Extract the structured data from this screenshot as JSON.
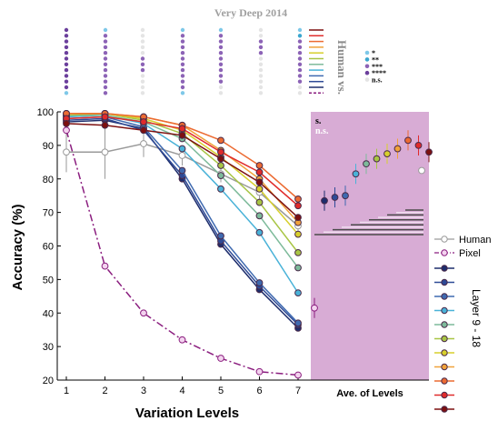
{
  "chart_data": {
    "type": "line",
    "title": "Very Deep 2014",
    "xlabel": "Variation Levels",
    "ylabel": "Accuracy (%)",
    "x": [
      1,
      2,
      3,
      4,
      5,
      6,
      7
    ],
    "xticks": [
      "1",
      "2",
      "3",
      "4",
      "5",
      "6",
      "7"
    ],
    "ylim": [
      20,
      100
    ],
    "yticks": [
      20,
      30,
      40,
      50,
      60,
      70,
      80,
      90,
      100
    ],
    "summary_label": "Ave. of Levels",
    "summary_panel_color": "#d8acd5",
    "vertical_label": "Human vs.",
    "layers_label": "Layer 9 - 18",
    "significance_labels": [
      "s.",
      "n.s."
    ],
    "significance_legend": [
      {
        "label": "*",
        "color": "#7ec8e8"
      },
      {
        "label": "**",
        "color": "#3aa6cf"
      },
      {
        "label": "***",
        "color": "#8c63b6"
      },
      {
        "label": "****",
        "color": "#6b3f9c"
      },
      {
        "label": "n.s.",
        "color": "#e4e4e4"
      }
    ],
    "series": [
      {
        "name": "Human",
        "color": "#9a9a9a",
        "style": "solid",
        "values": [
          88,
          88,
          90.5,
          87,
          81.5,
          76,
          66
        ],
        "errors": [
          6,
          8,
          4,
          3,
          2.5,
          2,
          2.5
        ],
        "average": 82.5
      },
      {
        "name": "Pixel",
        "color": "#8b1e7f",
        "style": "dashdot",
        "values": [
          94.5,
          54,
          40,
          32,
          26.5,
          22.5,
          21.5
        ],
        "errors": [
          0,
          0,
          0,
          0,
          0,
          0,
          0
        ],
        "average": 41.5
      },
      {
        "name": "",
        "color": "#1d2d6c",
        "style": "solid",
        "values": [
          97,
          97.5,
          95,
          80,
          60.5,
          47,
          35.5
        ],
        "average": 73.5
      },
      {
        "name": "",
        "color": "#2e4a96",
        "style": "solid",
        "values": [
          97.5,
          98,
          94.5,
          81,
          61.5,
          48,
          36.5
        ],
        "average": 74.5
      },
      {
        "name": "",
        "color": "#3f6ab0",
        "style": "solid",
        "values": [
          98,
          98.5,
          95.5,
          82.5,
          63,
          49,
          37
        ],
        "average": 75
      },
      {
        "name": "",
        "color": "#49b2d8",
        "style": "solid",
        "values": [
          98.5,
          99,
          96.5,
          89,
          77,
          64,
          46
        ],
        "average": 81.5
      },
      {
        "name": "",
        "color": "#7dba9a",
        "style": "solid",
        "values": [
          99,
          99,
          97,
          92,
          81,
          69,
          53.5
        ],
        "average": 84.5
      },
      {
        "name": "",
        "color": "#a8c544",
        "style": "solid",
        "values": [
          99,
          99.5,
          97.5,
          93.5,
          84,
          73,
          58
        ],
        "average": 86
      },
      {
        "name": "",
        "color": "#d7cf2c",
        "style": "solid",
        "values": [
          99.5,
          99.5,
          98,
          94.5,
          86.5,
          77,
          63.5
        ],
        "average": 87.5
      },
      {
        "name": "",
        "color": "#f0a23a",
        "style": "solid",
        "values": [
          99.5,
          99.5,
          98.5,
          96,
          88.5,
          80,
          67
        ],
        "average": 89
      },
      {
        "name": "",
        "color": "#ec6b32",
        "style": "solid",
        "values": [
          99.5,
          99.5,
          98.5,
          96,
          91.5,
          84,
          74
        ],
        "average": 91.5
      },
      {
        "name": "",
        "color": "#e02b2b",
        "style": "solid",
        "values": [
          98,
          98.5,
          97,
          95,
          88,
          82,
          72
        ],
        "average": 90
      },
      {
        "name": "",
        "color": "#7d1010",
        "style": "solid",
        "values": [
          96.5,
          96,
          94.5,
          93,
          86,
          79,
          68.5
        ],
        "average": 88
      }
    ]
  }
}
